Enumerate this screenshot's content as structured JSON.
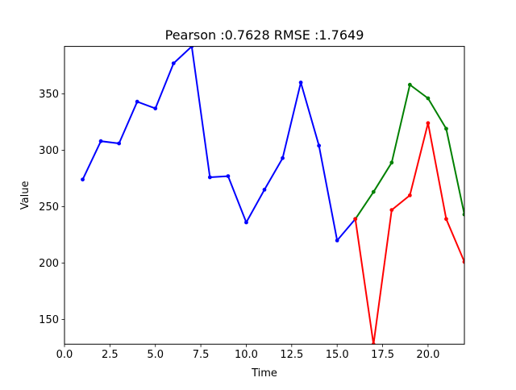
{
  "chart_data": {
    "type": "line",
    "title": "Pearson :0.7628  RMSE :1.7649",
    "xlabel": "Time",
    "ylabel": "Value",
    "xlim": [
      0,
      22
    ],
    "ylim": [
      128,
      392
    ],
    "xticks": [
      0,
      2.5,
      5,
      7.5,
      10,
      12.5,
      15,
      17.5,
      20
    ],
    "xtick_labels": [
      "0.0",
      "2.5",
      "5.0",
      "7.5",
      "10.0",
      "12.5",
      "15.0",
      "17.5",
      "20.0"
    ],
    "yticks": [
      150,
      200,
      250,
      300,
      350
    ],
    "ytick_labels": [
      "150",
      "200",
      "250",
      "300",
      "350"
    ],
    "grid": false,
    "series": [
      {
        "color": "#0000ff",
        "x": [
          1,
          2,
          3,
          4,
          5,
          6,
          7,
          8,
          9,
          10,
          11,
          12,
          13,
          14,
          15,
          16
        ],
        "y": [
          274,
          308,
          306,
          343,
          337,
          377,
          392,
          276,
          277,
          236,
          265,
          293,
          360,
          304,
          220,
          239
        ]
      },
      {
        "color": "#008000",
        "x": [
          16,
          17,
          18,
          19,
          20,
          21,
          22
        ],
        "y": [
          239,
          263,
          289,
          358,
          346,
          319,
          243
        ]
      },
      {
        "color": "#ff0000",
        "x": [
          16,
          17,
          18,
          19,
          20,
          21,
          22
        ],
        "y": [
          239,
          128,
          247,
          260,
          324,
          239,
          201
        ]
      }
    ]
  }
}
